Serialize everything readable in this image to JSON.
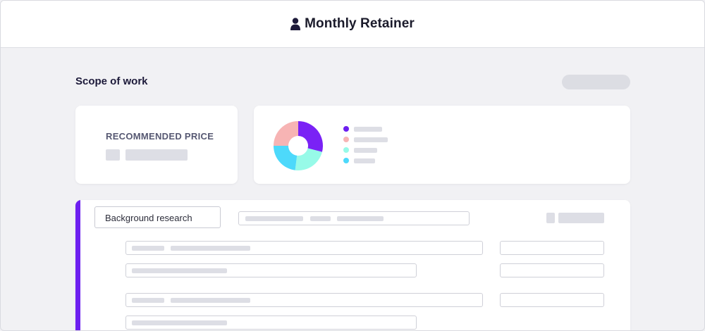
{
  "header": {
    "title": "Monthly Retainer",
    "icon": "user-icon"
  },
  "scope": {
    "title": "Scope of work"
  },
  "price_card": {
    "label": "RECOMMENDED PRICE"
  },
  "donut": {
    "segments": [
      {
        "color": "#7a22f5",
        "fraction": 0.29
      },
      {
        "color": "#97fae8",
        "fraction": 0.23
      },
      {
        "color": "#4dd9fb",
        "fraction": 0.23
      },
      {
        "color": "#f7b4b4",
        "fraction": 0.25
      }
    ],
    "legend_colors": [
      "#6d1ff0",
      "#f7b4b4",
      "#97fae8",
      "#4dd9fb"
    ]
  },
  "task": {
    "name": "Background research",
    "accent_color": "#6d1ff0"
  }
}
